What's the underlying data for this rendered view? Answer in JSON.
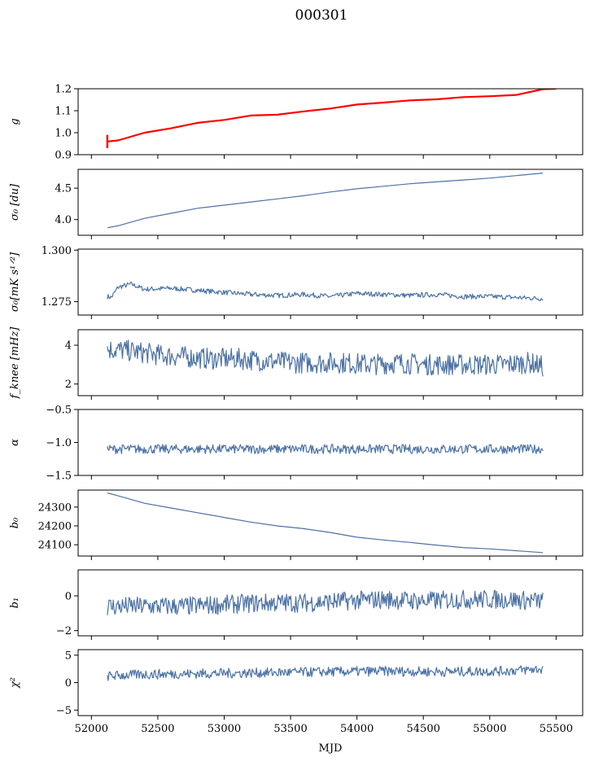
{
  "title": "000301",
  "xlabel": "MJD",
  "colors": {
    "series": "#4c72a4",
    "fit": "#ff0000"
  },
  "chart_data": [
    {
      "type": "line",
      "ylabel": "g",
      "ylim": [
        0.9,
        1.2
      ],
      "yticks": [
        0.9,
        1.0,
        1.1,
        1.2
      ],
      "yticklabels": [
        "0.9",
        "1.0",
        "1.1",
        "1.2"
      ],
      "xlim": [
        51900,
        55700
      ],
      "xticks": [
        52000,
        52500,
        53000,
        53500,
        54000,
        54500,
        55000,
        55500
      ],
      "series": [
        {
          "x": [
            52120,
            52200,
            52400,
            52600,
            52800,
            53000,
            53200,
            53400,
            53600,
            53800,
            54000,
            54200,
            54400,
            54600,
            54800,
            55000,
            55200,
            55400
          ],
          "y": [
            0.96,
            0.965,
            1.0,
            1.02,
            1.045,
            1.058,
            1.078,
            1.082,
            1.097,
            1.11,
            1.128,
            1.137,
            1.147,
            1.152,
            1.162,
            1.166,
            1.172,
            1.198
          ],
          "color": "#4c72a4"
        },
        {
          "x": [
            52120,
            52200,
            52400,
            52600,
            52800,
            53000,
            53200,
            53400,
            53600,
            53800,
            54000,
            54200,
            54400,
            54600,
            54800,
            55000,
            55200,
            55400,
            55500
          ],
          "y": [
            0.96,
            0.965,
            1.0,
            1.02,
            1.045,
            1.058,
            1.078,
            1.082,
            1.097,
            1.11,
            1.128,
            1.137,
            1.147,
            1.152,
            1.162,
            1.166,
            1.172,
            1.198,
            1.2
          ],
          "color": "#ff0000",
          "spike": {
            "x": 52120,
            "y0": 0.93,
            "y1": 0.99
          }
        }
      ]
    },
    {
      "type": "line",
      "ylabel": "σ0 [du]",
      "ylim": [
        3.75,
        4.8
      ],
      "yticks": [
        4.0,
        4.5
      ],
      "yticklabels": [
        "4.0",
        "4.5"
      ],
      "xlim": [
        51900,
        55700
      ],
      "xticks": [
        52000,
        52500,
        53000,
        53500,
        54000,
        54500,
        55000,
        55500
      ],
      "series": [
        {
          "x": [
            52120,
            52200,
            52400,
            52600,
            52800,
            53000,
            53200,
            53400,
            53600,
            53800,
            54000,
            54200,
            54400,
            54600,
            54800,
            55000,
            55200,
            55400
          ],
          "y": [
            3.87,
            3.9,
            4.02,
            4.1,
            4.18,
            4.23,
            4.28,
            4.33,
            4.38,
            4.44,
            4.49,
            4.53,
            4.57,
            4.6,
            4.63,
            4.66,
            4.7,
            4.74
          ],
          "color": "#4c72a4"
        }
      ]
    },
    {
      "type": "line",
      "ylabel": "σ0[mK s^1/2]",
      "ylim": [
        1.2685,
        1.3005
      ],
      "yticks": [
        1.275,
        1.3
      ],
      "yticklabels": [
        "1.275",
        "1.300"
      ],
      "xlim": [
        51900,
        55700
      ],
      "xticks": [
        52000,
        52500,
        53000,
        53500,
        54000,
        54500,
        55000,
        55500
      ],
      "series": [
        {
          "x": [
            52120,
            52150,
            52200,
            52300,
            52400,
            52600,
            52800,
            53000,
            53200,
            53400,
            53600,
            53800,
            54000,
            54200,
            54400,
            54600,
            54800,
            55000,
            55200,
            55400
          ],
          "y": [
            1.2775,
            1.277,
            1.282,
            1.2835,
            1.281,
            1.2815,
            1.2805,
            1.2795,
            1.2785,
            1.278,
            1.2785,
            1.2775,
            1.279,
            1.2785,
            1.278,
            1.2785,
            1.2775,
            1.2775,
            1.277,
            1.2765
          ],
          "noise": 0.0012,
          "color": "#4c72a4"
        }
      ]
    },
    {
      "type": "line",
      "ylabel": "fknee [mHz]",
      "ylim": [
        1.4,
        4.8
      ],
      "yticks": [
        2,
        4
      ],
      "yticklabels": [
        "2",
        "4"
      ],
      "xlim": [
        51900,
        55700
      ],
      "xticks": [
        52000,
        52500,
        53000,
        53500,
        54000,
        54500,
        55000,
        55500
      ],
      "series": [
        {
          "x": [
            52120,
            52300,
            52500,
            52700,
            52900,
            53100,
            53300,
            53500,
            53700,
            53900,
            54100,
            54300,
            54500,
            54700,
            54900,
            55100,
            55300,
            55400
          ],
          "y": [
            3.8,
            3.7,
            3.5,
            3.4,
            3.3,
            3.3,
            3.2,
            3.1,
            3.1,
            3.1,
            3.0,
            3.1,
            3.0,
            3.0,
            3.0,
            3.0,
            3.1,
            2.9
          ],
          "noise": 0.55,
          "color": "#4c72a4"
        }
      ]
    },
    {
      "type": "line",
      "ylabel": "α",
      "ylim": [
        -1.5,
        -0.5
      ],
      "yticks": [
        -1.5,
        -1.0,
        -0.5
      ],
      "yticklabels": [
        "−1.5",
        "−1.0",
        "−0.5"
      ],
      "xlim": [
        51900,
        55700
      ],
      "xticks": [
        52000,
        52500,
        53000,
        53500,
        54000,
        54500,
        55000,
        55500
      ],
      "series": [
        {
          "x": [
            52120,
            55400
          ],
          "y": [
            -1.1,
            -1.1
          ],
          "noise": 0.07,
          "color": "#4c72a4"
        }
      ]
    },
    {
      "type": "line",
      "ylabel": "b0",
      "ylim": [
        24040,
        24390
      ],
      "yticks": [
        24100,
        24200,
        24300
      ],
      "yticklabels": [
        "24100",
        "24200",
        "24300"
      ],
      "xlim": [
        51900,
        55700
      ],
      "xticks": [
        52000,
        52500,
        53000,
        53500,
        54000,
        54500,
        55000,
        55500
      ],
      "series": [
        {
          "x": [
            52120,
            52200,
            52400,
            52600,
            52800,
            53000,
            53200,
            53400,
            53600,
            53800,
            54000,
            54200,
            54400,
            54600,
            54800,
            55000,
            55200,
            55400
          ],
          "y": [
            24375,
            24360,
            24320,
            24295,
            24270,
            24245,
            24220,
            24200,
            24185,
            24165,
            24140,
            24125,
            24112,
            24098,
            24085,
            24078,
            24068,
            24058
          ],
          "color": "#4c72a4"
        }
      ]
    },
    {
      "type": "line",
      "ylabel": "b1",
      "ylim": [
        -2.3,
        1.5
      ],
      "yticks": [
        -2,
        0
      ],
      "yticklabels": [
        "−2",
        "0"
      ],
      "xlim": [
        51900,
        55700
      ],
      "xticks": [
        52000,
        52500,
        53000,
        53500,
        54000,
        54500,
        55000,
        55500
      ],
      "series": [
        {
          "x": [
            52120,
            52400,
            52700,
            53000,
            53300,
            53600,
            53900,
            54200,
            54500,
            54800,
            55100,
            55400
          ],
          "y": [
            -0.6,
            -0.6,
            -0.6,
            -0.5,
            -0.4,
            -0.4,
            -0.3,
            -0.2,
            -0.3,
            -0.2,
            -0.2,
            -0.3
          ],
          "noise": 0.55,
          "color": "#4c72a4"
        }
      ]
    },
    {
      "type": "line",
      "ylabel": "χ²",
      "ylim": [
        -6,
        6
      ],
      "yticks": [
        -5,
        0,
        5
      ],
      "yticklabels": [
        "−5",
        "0",
        "5"
      ],
      "xlim": [
        51900,
        55700
      ],
      "xticks": [
        52000,
        52500,
        53000,
        53500,
        54000,
        54500,
        55000,
        55500
      ],
      "xticklabels": [
        "52000",
        "52500",
        "53000",
        "53500",
        "54000",
        "54500",
        "55000",
        "55500"
      ],
      "series": [
        {
          "x": [
            52120,
            52400,
            52700,
            53000,
            53300,
            53600,
            53900,
            54200,
            54500,
            54800,
            55100,
            55400
          ],
          "y": [
            1.2,
            1.5,
            1.6,
            1.7,
            1.8,
            1.9,
            2.0,
            2.1,
            2.0,
            2.0,
            2.1,
            2.5
          ],
          "noise": 0.9,
          "color": "#4c72a4"
        }
      ]
    }
  ]
}
